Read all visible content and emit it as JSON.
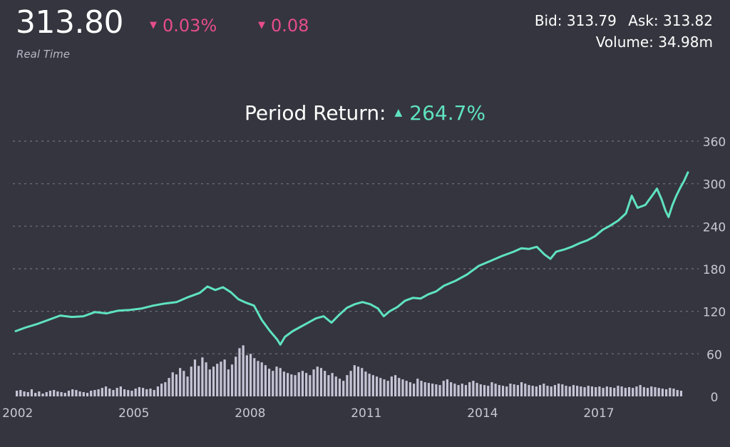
{
  "header": {
    "price": "313.80",
    "change_pct": "0.03%",
    "change_abs": "0.08",
    "change_direction_icon": "down-triangle-icon",
    "realtime_label": "Real Time",
    "bid_label": "Bid:",
    "bid_value": "313.79",
    "ask_label": "Ask:",
    "ask_value": "313.82",
    "volume_label": "Volume:",
    "volume_value": "34.98m"
  },
  "period_return": {
    "label": "Period Return:",
    "value": "264.7%",
    "direction_icon": "up-triangle-icon"
  },
  "colors": {
    "background": "#35353f",
    "line": "#5fe3bf",
    "negative": "#e64d8c",
    "volume_bars": "#c4c4d6",
    "grid": "#6a6a78",
    "axis_text": "#c8c8d2"
  },
  "chart_data": {
    "type": "line",
    "grid": true,
    "ylim": [
      0,
      360
    ],
    "yticks": [
      "360",
      "300",
      "240",
      "180",
      "120",
      "60",
      "0"
    ],
    "xticks": [
      "2002",
      "2005",
      "2008",
      "2011",
      "2014",
      "2017"
    ],
    "xrange": [
      2001.95,
      2019.3
    ],
    "series": [
      {
        "kind": "price",
        "points": [
          [
            2001.95,
            92
          ],
          [
            2002.2,
            97
          ],
          [
            2002.5,
            102
          ],
          [
            2002.8,
            108
          ],
          [
            2003.1,
            114
          ],
          [
            2003.4,
            112
          ],
          [
            2003.7,
            113
          ],
          [
            2004.0,
            119
          ],
          [
            2004.3,
            117
          ],
          [
            2004.6,
            121
          ],
          [
            2004.9,
            122
          ],
          [
            2005.2,
            124
          ],
          [
            2005.5,
            128
          ],
          [
            2005.8,
            131
          ],
          [
            2006.1,
            133
          ],
          [
            2006.4,
            140
          ],
          [
            2006.7,
            146
          ],
          [
            2006.9,
            155
          ],
          [
            2007.1,
            150
          ],
          [
            2007.3,
            154
          ],
          [
            2007.5,
            147
          ],
          [
            2007.7,
            137
          ],
          [
            2007.9,
            132
          ],
          [
            2008.1,
            128
          ],
          [
            2008.3,
            108
          ],
          [
            2008.5,
            93
          ],
          [
            2008.7,
            80
          ],
          [
            2008.78,
            73
          ],
          [
            2008.9,
            84
          ],
          [
            2009.1,
            92
          ],
          [
            2009.3,
            98
          ],
          [
            2009.5,
            104
          ],
          [
            2009.7,
            110
          ],
          [
            2009.9,
            113
          ],
          [
            2010.1,
            104
          ],
          [
            2010.3,
            115
          ],
          [
            2010.5,
            125
          ],
          [
            2010.7,
            130
          ],
          [
            2010.9,
            133
          ],
          [
            2011.1,
            130
          ],
          [
            2011.3,
            124
          ],
          [
            2011.45,
            113
          ],
          [
            2011.6,
            120
          ],
          [
            2011.8,
            126
          ],
          [
            2012.0,
            135
          ],
          [
            2012.2,
            139
          ],
          [
            2012.4,
            138
          ],
          [
            2012.6,
            144
          ],
          [
            2012.8,
            148
          ],
          [
            2013.0,
            156
          ],
          [
            2013.3,
            163
          ],
          [
            2013.6,
            172
          ],
          [
            2013.9,
            184
          ],
          [
            2014.2,
            191
          ],
          [
            2014.5,
            198
          ],
          [
            2014.8,
            204
          ],
          [
            2015.0,
            209
          ],
          [
            2015.2,
            208
          ],
          [
            2015.4,
            211
          ],
          [
            2015.6,
            200
          ],
          [
            2015.75,
            194
          ],
          [
            2015.9,
            204
          ],
          [
            2016.1,
            207
          ],
          [
            2016.3,
            211
          ],
          [
            2016.5,
            216
          ],
          [
            2016.7,
            220
          ],
          [
            2016.9,
            226
          ],
          [
            2017.1,
            235
          ],
          [
            2017.3,
            241
          ],
          [
            2017.5,
            248
          ],
          [
            2017.7,
            258
          ],
          [
            2017.85,
            283
          ],
          [
            2018.0,
            266
          ],
          [
            2018.2,
            270
          ],
          [
            2018.4,
            285
          ],
          [
            2018.5,
            293
          ],
          [
            2018.62,
            278
          ],
          [
            2018.72,
            262
          ],
          [
            2018.8,
            253
          ],
          [
            2018.9,
            270
          ],
          [
            2019.0,
            283
          ],
          [
            2019.1,
            294
          ],
          [
            2019.2,
            304
          ],
          [
            2019.3,
            316
          ]
        ]
      },
      {
        "kind": "volume",
        "values": [
          8,
          9,
          7,
          6,
          10,
          5,
          7,
          4,
          6,
          8,
          9,
          7,
          6,
          5,
          8,
          10,
          9,
          7,
          6,
          5,
          8,
          9,
          10,
          12,
          14,
          11,
          9,
          12,
          14,
          10,
          9,
          8,
          11,
          13,
          12,
          10,
          11,
          9,
          14,
          18,
          20,
          26,
          34,
          31,
          40,
          36,
          28,
          42,
          52,
          43,
          55,
          48,
          38,
          42,
          46,
          49,
          52,
          38,
          45,
          56,
          68,
          72,
          58,
          60,
          54,
          50,
          48,
          44,
          39,
          36,
          42,
          40,
          35,
          33,
          31,
          30,
          34,
          36,
          33,
          30,
          38,
          42,
          40,
          36,
          30,
          33,
          28,
          25,
          22,
          30,
          36,
          44,
          42,
          40,
          35,
          32,
          30,
          28,
          26,
          24,
          22,
          28,
          30,
          26,
          24,
          22,
          20,
          18,
          25,
          22,
          20,
          19,
          18,
          17,
          16,
          22,
          24,
          20,
          18,
          16,
          18,
          16,
          20,
          22,
          19,
          17,
          16,
          15,
          20,
          18,
          16,
          15,
          14,
          18,
          17,
          16,
          20,
          18,
          16,
          15,
          14,
          16,
          18,
          15,
          14,
          16,
          18,
          17,
          15,
          14,
          16,
          15,
          14,
          13,
          15,
          14,
          13,
          14,
          12,
          14,
          13,
          12,
          15,
          14,
          12,
          13,
          12,
          14,
          16,
          13,
          12,
          14,
          13,
          12,
          11,
          10,
          12,
          11,
          9,
          8
        ]
      }
    ]
  }
}
